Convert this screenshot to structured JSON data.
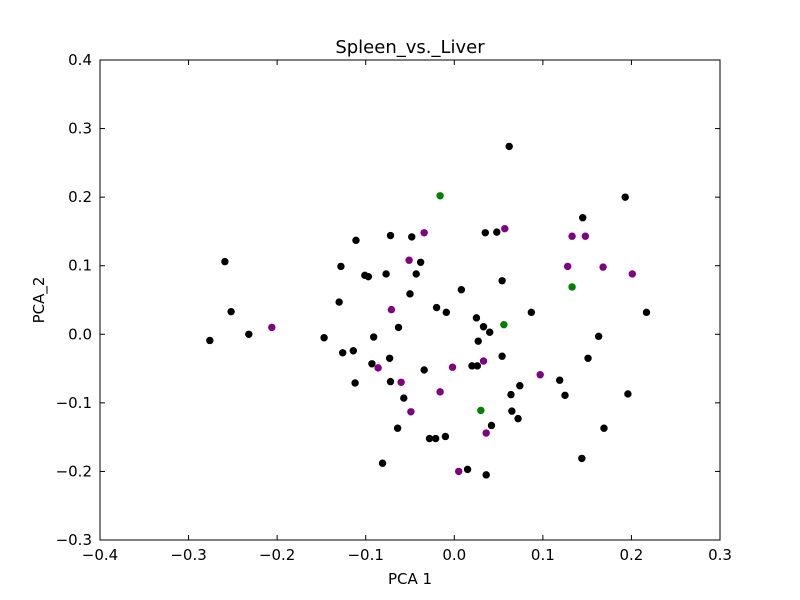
{
  "chart_data": {
    "type": "scatter",
    "title": "Spleen_vs._Liver",
    "xlabel": "PCA 1",
    "ylabel": "PCA_2",
    "xlim": [
      -0.4,
      0.3
    ],
    "ylim": [
      -0.3,
      0.4
    ],
    "xticks": [
      "−0.4",
      "−0.3",
      "−0.2",
      "−0.1",
      "0.0",
      "0.1",
      "0.2",
      "0.3"
    ],
    "yticks": [
      "−0.3",
      "−0.2",
      "−0.1",
      "0.0",
      "0.1",
      "0.2",
      "0.3",
      "0.4"
    ],
    "grid": false,
    "series": [
      {
        "color": "#000000",
        "points": [
          [
            0.062,
            0.274
          ],
          [
            0.193,
            0.2
          ],
          [
            0.145,
            0.17
          ],
          [
            -0.259,
            0.106
          ],
          [
            -0.252,
            0.033
          ],
          [
            -0.232,
            0.0
          ],
          [
            -0.276,
            -0.009
          ],
          [
            -0.111,
            0.137
          ],
          [
            -0.072,
            0.144
          ],
          [
            -0.048,
            0.142
          ],
          [
            -0.128,
            0.099
          ],
          [
            -0.101,
            0.086
          ],
          [
            -0.097,
            0.084
          ],
          [
            -0.077,
            0.088
          ],
          [
            -0.038,
            0.105
          ],
          [
            -0.043,
            0.088
          ],
          [
            0.035,
            0.148
          ],
          [
            0.048,
            0.149
          ],
          [
            0.054,
            0.078
          ],
          [
            0.008,
            0.065
          ],
          [
            -0.05,
            0.059
          ],
          [
            -0.02,
            0.039
          ],
          [
            -0.009,
            0.032
          ],
          [
            -0.13,
            0.047
          ],
          [
            0.087,
            0.032
          ],
          [
            0.217,
            0.032
          ],
          [
            0.025,
            0.024
          ],
          [
            0.033,
            0.011
          ],
          [
            0.04,
            0.003
          ],
          [
            -0.063,
            0.01
          ],
          [
            -0.147,
            -0.005
          ],
          [
            -0.091,
            -0.004
          ],
          [
            0.163,
            -0.003
          ],
          [
            0.027,
            -0.01
          ],
          [
            -0.126,
            -0.027
          ],
          [
            -0.114,
            -0.024
          ],
          [
            -0.073,
            -0.035
          ],
          [
            -0.093,
            -0.043
          ],
          [
            0.054,
            -0.032
          ],
          [
            0.151,
            -0.035
          ],
          [
            -0.034,
            -0.052
          ],
          [
            0.02,
            -0.046
          ],
          [
            0.026,
            -0.046
          ],
          [
            -0.112,
            -0.071
          ],
          [
            -0.072,
            -0.069
          ],
          [
            0.074,
            -0.075
          ],
          [
            0.119,
            -0.067
          ],
          [
            0.125,
            -0.089
          ],
          [
            0.064,
            -0.088
          ],
          [
            -0.057,
            -0.093
          ],
          [
            0.196,
            -0.087
          ],
          [
            0.065,
            -0.112
          ],
          [
            0.072,
            -0.123
          ],
          [
            0.042,
            -0.133
          ],
          [
            -0.064,
            -0.137
          ],
          [
            -0.028,
            -0.152
          ],
          [
            -0.021,
            -0.152
          ],
          [
            -0.01,
            -0.149
          ],
          [
            0.169,
            -0.137
          ],
          [
            -0.081,
            -0.188
          ],
          [
            0.015,
            -0.197
          ],
          [
            0.036,
            -0.205
          ],
          [
            0.144,
            -0.181
          ]
        ]
      },
      {
        "color": "#800080",
        "points": [
          [
            -0.206,
            0.01
          ],
          [
            -0.034,
            0.148
          ],
          [
            0.057,
            0.154
          ],
          [
            -0.051,
            0.108
          ],
          [
            0.133,
            0.143
          ],
          [
            0.148,
            0.143
          ],
          [
            0.128,
            0.099
          ],
          [
            0.168,
            0.098
          ],
          [
            0.201,
            0.088
          ],
          [
            -0.071,
            0.036
          ],
          [
            -0.086,
            -0.049
          ],
          [
            -0.06,
            -0.07
          ],
          [
            -0.002,
            -0.048
          ],
          [
            0.033,
            -0.039
          ],
          [
            0.097,
            -0.059
          ],
          [
            -0.016,
            -0.084
          ],
          [
            -0.049,
            -0.113
          ],
          [
            0.036,
            -0.144
          ],
          [
            0.005,
            -0.2
          ]
        ]
      },
      {
        "color": "#008000",
        "points": [
          [
            -0.016,
            0.202
          ],
          [
            0.133,
            0.069
          ],
          [
            0.056,
            0.014
          ],
          [
            0.03,
            -0.111
          ]
        ]
      }
    ]
  }
}
